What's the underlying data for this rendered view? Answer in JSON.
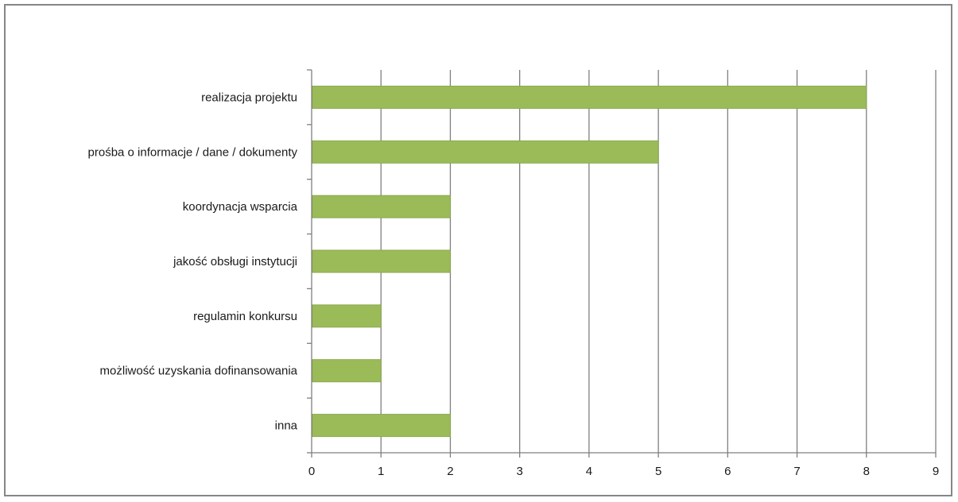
{
  "chart_data": {
    "type": "bar",
    "orientation": "horizontal",
    "categories": [
      "realizacja projektu",
      "prośba o informacje / dane / dokumenty",
      "koordynacja wsparcia",
      "jakość obsługi instytucji",
      "regulamin konkursu",
      "możliwość uzyskania dofinansowania",
      "inna"
    ],
    "values": [
      8,
      5,
      2,
      2,
      1,
      1,
      2
    ],
    "xlim": [
      0,
      9
    ],
    "xticks": [
      "0",
      "1",
      "2",
      "3",
      "4",
      "5",
      "6",
      "7",
      "8",
      "9"
    ],
    "title": "",
    "xlabel": "",
    "ylabel": "",
    "grid": "vertical",
    "legend": "none",
    "colors": {
      "bar": "#9bbb59",
      "bar_border": "#8aa84e",
      "gridline": "#7f7f7f",
      "axis": "#7f7f7f",
      "frame": "#868686"
    }
  }
}
